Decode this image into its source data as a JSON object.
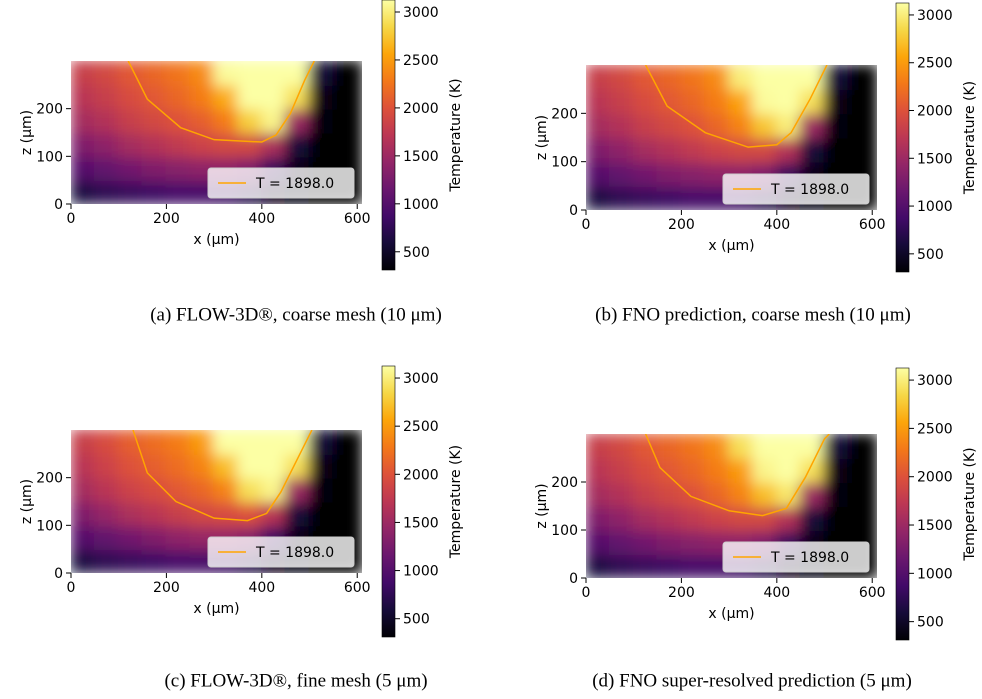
{
  "chart_data": [
    {
      "type": "heatmap",
      "caption": "(a) FLOW-3D®, coarse mesh (10 μm)",
      "xlabel": "x (μm)",
      "ylabel": "z (μm)",
      "xlim": [
        0,
        610
      ],
      "xticks": [
        0,
        200,
        400,
        600
      ],
      "ylim": [
        0,
        300
      ],
      "yticks": [
        0,
        100,
        200
      ],
      "colormap": "inferno",
      "clim": [
        310,
        3125
      ],
      "colorbar_label": "Temperature (K)",
      "colorbar_ticks": [
        500,
        1000,
        1500,
        2000,
        2500,
        3000
      ],
      "xbins": [
        0,
        50,
        100,
        150,
        200,
        250,
        300,
        350,
        400,
        450,
        500,
        550,
        610
      ],
      "ybins": [
        0,
        50,
        100,
        150,
        200,
        250,
        300
      ],
      "field": [
        [
          650,
          750,
          800,
          850,
          900,
          900,
          850,
          700,
          450,
          330,
          315,
          310
        ],
        [
          1000,
          1100,
          1200,
          1300,
          1350,
          1400,
          1400,
          1300,
          800,
          400,
          320,
          310
        ],
        [
          1300,
          1400,
          1550,
          1650,
          1750,
          1850,
          1900,
          1900,
          1600,
          600,
          320,
          310
        ],
        [
          1550,
          1650,
          1800,
          1900,
          2000,
          2100,
          2300,
          2800,
          3050,
          1500,
          350,
          310
        ],
        [
          1700,
          1800,
          1950,
          2050,
          2150,
          2300,
          2600,
          3125,
          3125,
          2900,
          420,
          310
        ],
        [
          1800,
          1900,
          2050,
          2150,
          2250,
          2400,
          3100,
          3125,
          3125,
          3125,
          600,
          320
        ]
      ],
      "contour": {
        "label": "T = 1898.0",
        "color": "#ffa500",
        "x": [
          120,
          160,
          230,
          300,
          400,
          430,
          460,
          490,
          510
        ],
        "z": [
          300,
          220,
          160,
          135,
          130,
          145,
          190,
          260,
          300
        ]
      },
      "legend": "lower right"
    },
    {
      "type": "heatmap",
      "caption": "(b) FNO prediction, coarse mesh (10 μm)",
      "xlabel": "x (μm)",
      "ylabel": "z (μm)",
      "xlim": [
        0,
        610
      ],
      "xticks": [
        0,
        200,
        400,
        600
      ],
      "ylim": [
        0,
        300
      ],
      "yticks": [
        0,
        100,
        200
      ],
      "colormap": "inferno",
      "clim": [
        310,
        3125
      ],
      "colorbar_label": "Temperature (K)",
      "colorbar_ticks": [
        500,
        1000,
        1500,
        2000,
        2500,
        3000
      ],
      "xbins": [
        0,
        50,
        100,
        150,
        200,
        250,
        300,
        350,
        400,
        450,
        500,
        550,
        610
      ],
      "ybins": [
        0,
        50,
        100,
        150,
        200,
        250,
        300
      ],
      "field": [
        [
          650,
          750,
          800,
          850,
          900,
          900,
          850,
          700,
          450,
          330,
          315,
          310
        ],
        [
          1000,
          1100,
          1200,
          1300,
          1350,
          1400,
          1400,
          1300,
          800,
          400,
          320,
          310
        ],
        [
          1300,
          1400,
          1550,
          1650,
          1750,
          1850,
          1900,
          1900,
          1650,
          600,
          320,
          310
        ],
        [
          1550,
          1650,
          1800,
          1900,
          2000,
          2150,
          2350,
          2750,
          3000,
          1500,
          350,
          310
        ],
        [
          1700,
          1800,
          1950,
          2050,
          2150,
          2300,
          2550,
          3100,
          3125,
          2900,
          420,
          310
        ],
        [
          1800,
          1900,
          2050,
          2150,
          2250,
          2400,
          3000,
          3125,
          3125,
          3125,
          600,
          320
        ]
      ],
      "contour": {
        "label": "T = 1898.0",
        "color": "#ffa500",
        "x": [
          125,
          170,
          250,
          340,
          400,
          430,
          470,
          505
        ],
        "z": [
          300,
          215,
          160,
          130,
          135,
          160,
          230,
          300
        ]
      },
      "legend": "lower right"
    },
    {
      "type": "heatmap",
      "caption": "(c) FLOW-3D®, fine mesh (5 μm)",
      "xlabel": "x (μm)",
      "ylabel": "z (μm)",
      "xlim": [
        0,
        610
      ],
      "xticks": [
        0,
        200,
        400,
        600
      ],
      "ylim": [
        0,
        300
      ],
      "yticks": [
        0,
        100,
        200
      ],
      "colormap": "inferno",
      "clim": [
        310,
        3125
      ],
      "colorbar_label": "Temperature (K)",
      "colorbar_ticks": [
        500,
        1000,
        1500,
        2000,
        2500,
        3000
      ],
      "xbins": [
        0,
        50,
        100,
        150,
        200,
        250,
        300,
        350,
        400,
        450,
        500,
        550,
        610
      ],
      "ybins": [
        0,
        50,
        100,
        150,
        200,
        250,
        300
      ],
      "field": [
        [
          650,
          750,
          800,
          850,
          900,
          900,
          850,
          700,
          450,
          330,
          315,
          310
        ],
        [
          1000,
          1100,
          1200,
          1300,
          1400,
          1450,
          1450,
          1350,
          850,
          400,
          320,
          310
        ],
        [
          1300,
          1450,
          1600,
          1700,
          1800,
          1900,
          1950,
          2000,
          1700,
          600,
          320,
          310
        ],
        [
          1550,
          1700,
          1850,
          1950,
          2050,
          2150,
          2350,
          2900,
          3050,
          1500,
          350,
          310
        ],
        [
          1700,
          1850,
          2000,
          2100,
          2200,
          2350,
          2700,
          3125,
          3125,
          2900,
          420,
          310
        ],
        [
          1800,
          1950,
          2100,
          2200,
          2300,
          2500,
          3125,
          3125,
          3125,
          3125,
          600,
          320
        ]
      ],
      "contour": {
        "label": "T = 1898.0",
        "color": "#ffa500",
        "x": [
          130,
          160,
          220,
          300,
          370,
          410,
          440,
          480,
          505
        ],
        "z": [
          300,
          210,
          150,
          115,
          110,
          125,
          170,
          250,
          300
        ]
      },
      "legend": "lower right"
    },
    {
      "type": "heatmap",
      "caption": "(d) FNO super-resolved prediction (5 μm)",
      "xlabel": "x (μm)",
      "ylabel": "z (μm)",
      "xlim": [
        0,
        610
      ],
      "xticks": [
        0,
        200,
        400,
        600
      ],
      "ylim": [
        0,
        300
      ],
      "yticks": [
        0,
        100,
        200
      ],
      "colormap": "inferno",
      "clim": [
        310,
        3125
      ],
      "colorbar_label": "Temperature (K)",
      "colorbar_ticks": [
        500,
        1000,
        1500,
        2000,
        2500,
        3000
      ],
      "xbins": [
        0,
        50,
        100,
        150,
        200,
        250,
        300,
        350,
        400,
        450,
        500,
        550,
        610
      ],
      "ybins": [
        0,
        50,
        100,
        150,
        200,
        250,
        300
      ],
      "field": [
        [
          650,
          750,
          800,
          850,
          900,
          900,
          850,
          700,
          450,
          330,
          315,
          310
        ],
        [
          1000,
          1100,
          1200,
          1300,
          1350,
          1400,
          1400,
          1300,
          800,
          400,
          320,
          310
        ],
        [
          1300,
          1400,
          1550,
          1650,
          1750,
          1850,
          1900,
          1900,
          1650,
          600,
          320,
          310
        ],
        [
          1550,
          1650,
          1800,
          1900,
          2000,
          2150,
          2350,
          2700,
          2950,
          1500,
          350,
          310
        ],
        [
          1700,
          1800,
          1950,
          2050,
          2150,
          2300,
          2500,
          3050,
          3125,
          2900,
          420,
          310
        ],
        [
          1800,
          1900,
          2050,
          2150,
          2250,
          2400,
          2900,
          3125,
          3125,
          3125,
          600,
          320
        ]
      ],
      "contour": {
        "label": "T = 1898.0",
        "color": "#ffa500",
        "x": [
          125,
          155,
          220,
          300,
          370,
          420,
          460,
          500,
          510
        ],
        "z": [
          300,
          230,
          170,
          140,
          130,
          145,
          210,
          290,
          300
        ]
      },
      "legend": "lower right"
    }
  ]
}
